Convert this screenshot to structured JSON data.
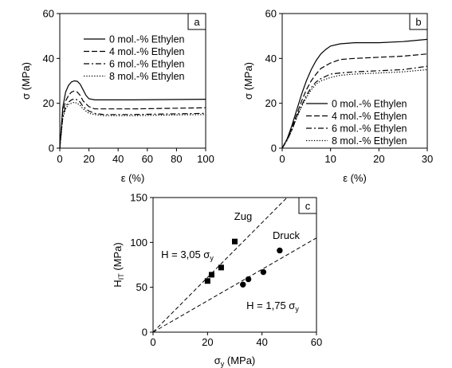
{
  "chart_data": [
    {
      "panel": "a",
      "type": "line",
      "xlabel": "ε (%)",
      "ylabel": "σ (MPa)",
      "xlim": [
        0,
        100
      ],
      "ylim": [
        0,
        60
      ],
      "xticks": [
        0,
        20,
        40,
        60,
        80,
        100
      ],
      "yticks": [
        0,
        20,
        40,
        60
      ],
      "legend_position": "top-right",
      "series": [
        {
          "name": "0 mol.-% Ethylen",
          "dash": "solid",
          "x": [
            0,
            2,
            4,
            6,
            8,
            10,
            12,
            14,
            16,
            18,
            20,
            24,
            30,
            50,
            100
          ],
          "y": [
            0,
            18,
            25,
            28,
            29.5,
            30,
            29.8,
            28.5,
            26,
            23.5,
            22,
            21.5,
            21.5,
            21.5,
            21.8
          ]
        },
        {
          "name": "4 mol.-% Ethylen",
          "dash": "dashed",
          "x": [
            0,
            2,
            4,
            6,
            8,
            10,
            12,
            14,
            16,
            20,
            24,
            30,
            50,
            100
          ],
          "y": [
            0,
            16,
            21,
            23.5,
            25,
            25.5,
            25,
            23.5,
            21,
            18.5,
            17.5,
            17.5,
            17.5,
            18
          ]
        },
        {
          "name": "6 mol.-% Ethylen",
          "dash": "dashdot",
          "x": [
            0,
            2,
            4,
            6,
            8,
            10,
            12,
            14,
            16,
            20,
            24,
            30,
            50,
            100
          ],
          "y": [
            0,
            14,
            18.5,
            20.5,
            21.5,
            22,
            21.5,
            20.5,
            18.5,
            16.5,
            15.5,
            15,
            15,
            15.5
          ]
        },
        {
          "name": "8 mol.-% Ethylen",
          "dash": "dotted",
          "x": [
            0,
            2,
            4,
            6,
            8,
            10,
            12,
            14,
            16,
            20,
            24,
            30,
            50,
            100
          ],
          "y": [
            0,
            13,
            17.5,
            19.5,
            20,
            20.5,
            20,
            19,
            17.5,
            15.5,
            15,
            14.5,
            14.5,
            15
          ]
        }
      ]
    },
    {
      "panel": "b",
      "type": "line",
      "xlabel": "ε (%)",
      "ylabel": "σ (MPa)",
      "xlim": [
        0,
        30
      ],
      "ylim": [
        0,
        60
      ],
      "xticks": [
        0,
        10,
        20,
        30
      ],
      "yticks": [
        0,
        20,
        40,
        60
      ],
      "legend_position": "bottom-right",
      "series": [
        {
          "name": "0 mol.-% Ethylen",
          "dash": "solid",
          "x": [
            0,
            1,
            2,
            3,
            4,
            5,
            6,
            7,
            8,
            9,
            10,
            12,
            15,
            20,
            25,
            30
          ],
          "y": [
            0,
            4,
            10,
            17,
            24,
            30,
            35,
            39,
            42,
            44,
            45.5,
            46.5,
            47,
            47,
            47.5,
            48.5
          ]
        },
        {
          "name": "4 mol.-% Ethylen",
          "dash": "dashed",
          "x": [
            0,
            1,
            2,
            3,
            4,
            5,
            6,
            7,
            8,
            10,
            12,
            15,
            20,
            25,
            30
          ],
          "y": [
            0,
            4,
            9,
            15,
            21,
            26,
            30,
            33,
            35.5,
            38,
            39.5,
            40,
            40.5,
            41,
            42
          ]
        },
        {
          "name": "6 mol.-% Ethylen",
          "dash": "dashdot",
          "x": [
            0,
            1,
            2,
            3,
            4,
            5,
            6,
            7,
            8,
            10,
            12,
            15,
            20,
            25,
            30
          ],
          "y": [
            0,
            3.5,
            8,
            14,
            19,
            23.5,
            27,
            29.5,
            31,
            33,
            33.5,
            34,
            34.5,
            35,
            36.5
          ]
        },
        {
          "name": "8 mol.-% Ethylen",
          "dash": "dotted",
          "x": [
            0,
            1,
            2,
            3,
            4,
            5,
            6,
            7,
            8,
            10,
            12,
            15,
            20,
            25,
            30
          ],
          "y": [
            0,
            3.5,
            8,
            13.5,
            18.5,
            22.5,
            26,
            28.5,
            30,
            31.5,
            32.5,
            33,
            33.5,
            34,
            35
          ]
        }
      ]
    },
    {
      "panel": "c",
      "type": "scatter",
      "xlabel": "σy (MPa)",
      "ylabel": "HIT (MPa)",
      "xlim": [
        0,
        60
      ],
      "ylim": [
        0,
        150
      ],
      "xticks": [
        0,
        20,
        40,
        60
      ],
      "yticks": [
        0,
        50,
        100,
        150
      ],
      "series": [
        {
          "name": "Zug",
          "marker": "square",
          "x": [
            20,
            21.5,
            25,
            30
          ],
          "y": [
            57,
            64,
            72,
            101
          ]
        },
        {
          "name": "Druck",
          "marker": "circle",
          "x": [
            33,
            35,
            40.5,
            46.5
          ],
          "y": [
            53,
            59,
            67,
            91
          ]
        }
      ],
      "fit_lines": [
        {
          "slope": 3.05,
          "label_main": "H = 3,05 σ",
          "label_sub": "y"
        },
        {
          "slope": 1.75,
          "label_main": "H = 1,75 σ",
          "label_sub": "y"
        }
      ]
    }
  ],
  "labels": {
    "panel_a": "a",
    "panel_b": "b",
    "panel_c": "c",
    "zug": "Zug",
    "druck": "Druck",
    "eps_label": "ε (%)",
    "sigma_label": "σ (MPa)",
    "hit_main": "H",
    "hit_sub": "IT",
    "hit_unit": " (MPa)",
    "sy_main": "σ",
    "sy_sub": "y",
    "sy_unit": " (MPa)",
    "fit1_main": "H = 3,05 σ",
    "fit1_sub": "y",
    "fit2_main": "H = 1,75 σ",
    "fit2_sub": "y"
  }
}
